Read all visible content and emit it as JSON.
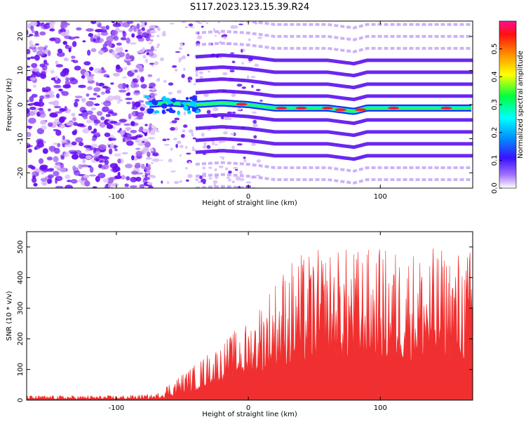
{
  "figure": {
    "title": "S117.2023.123.15.39.R24"
  },
  "chart_data": [
    {
      "type": "heatmap",
      "title": "S117.2023.123.15.39.R24",
      "xlabel": "Height of straight line (km)",
      "ylabel": "Frequency (Hz)",
      "xlim": [
        -168,
        170
      ],
      "ylim": [
        -24.5,
        24.5
      ],
      "xticks": [
        -100,
        0,
        100
      ],
      "xtick_labels": [
        "-100",
        "0",
        "100"
      ],
      "yticks": [
        -20,
        -10,
        0,
        10,
        20
      ],
      "ytick_labels": [
        "-20",
        "-10",
        "0",
        "10",
        "20"
      ],
      "colorbar": {
        "label": "Normalized spectral amplitude",
        "range": [
          0.0,
          0.6
        ],
        "ticks": [
          0.0,
          0.1,
          0.2,
          0.3,
          0.4,
          0.5
        ],
        "tick_labels": [
          "0.0",
          "0.1",
          "0.2",
          "0.3",
          "0.4",
          "0.5"
        ]
      },
      "ridge": {
        "description_values_x": [
          -78,
          -60,
          -40,
          -20,
          0,
          20,
          40,
          60,
          80,
          90,
          100,
          120,
          140,
          170
        ],
        "description_values_y": [
          0,
          0.5,
          0,
          0.5,
          0,
          -1,
          -1,
          -1,
          -2,
          -1,
          -1,
          -1,
          -1,
          -1
        ]
      },
      "harmonic_band_spacing_hz": 3.5,
      "grid": false
    },
    {
      "type": "bar",
      "xlabel": "Height of straight line (km)",
      "ylabel": "SNR (10 * v/v)",
      "xlim": [
        -168,
        170
      ],
      "ylim": [
        0,
        550
      ],
      "xticks": [
        -100,
        0,
        100
      ],
      "xtick_labels": [
        "-100",
        "0",
        "100"
      ],
      "yticks": [
        0,
        100,
        200,
        300,
        400,
        500
      ],
      "ytick_labels": [
        "0",
        "100",
        "200",
        "300",
        "400",
        "500"
      ],
      "color": "#f03030",
      "envelope_x": [
        -168,
        -130,
        -100,
        -70,
        -60,
        -50,
        -40,
        -30,
        -20,
        -10,
        0,
        10,
        20,
        30,
        40,
        60,
        80,
        100,
        120,
        140,
        170
      ],
      "envelope_upper": [
        15,
        15,
        15,
        20,
        60,
        90,
        120,
        160,
        190,
        230,
        260,
        340,
        400,
        460,
        480,
        500,
        500,
        500,
        500,
        500,
        500
      ],
      "envelope_lower": [
        3,
        3,
        3,
        3,
        10,
        20,
        30,
        50,
        60,
        70,
        80,
        90,
        100,
        110,
        120,
        130,
        130,
        130,
        130,
        130,
        130
      ],
      "grid": false
    }
  ]
}
